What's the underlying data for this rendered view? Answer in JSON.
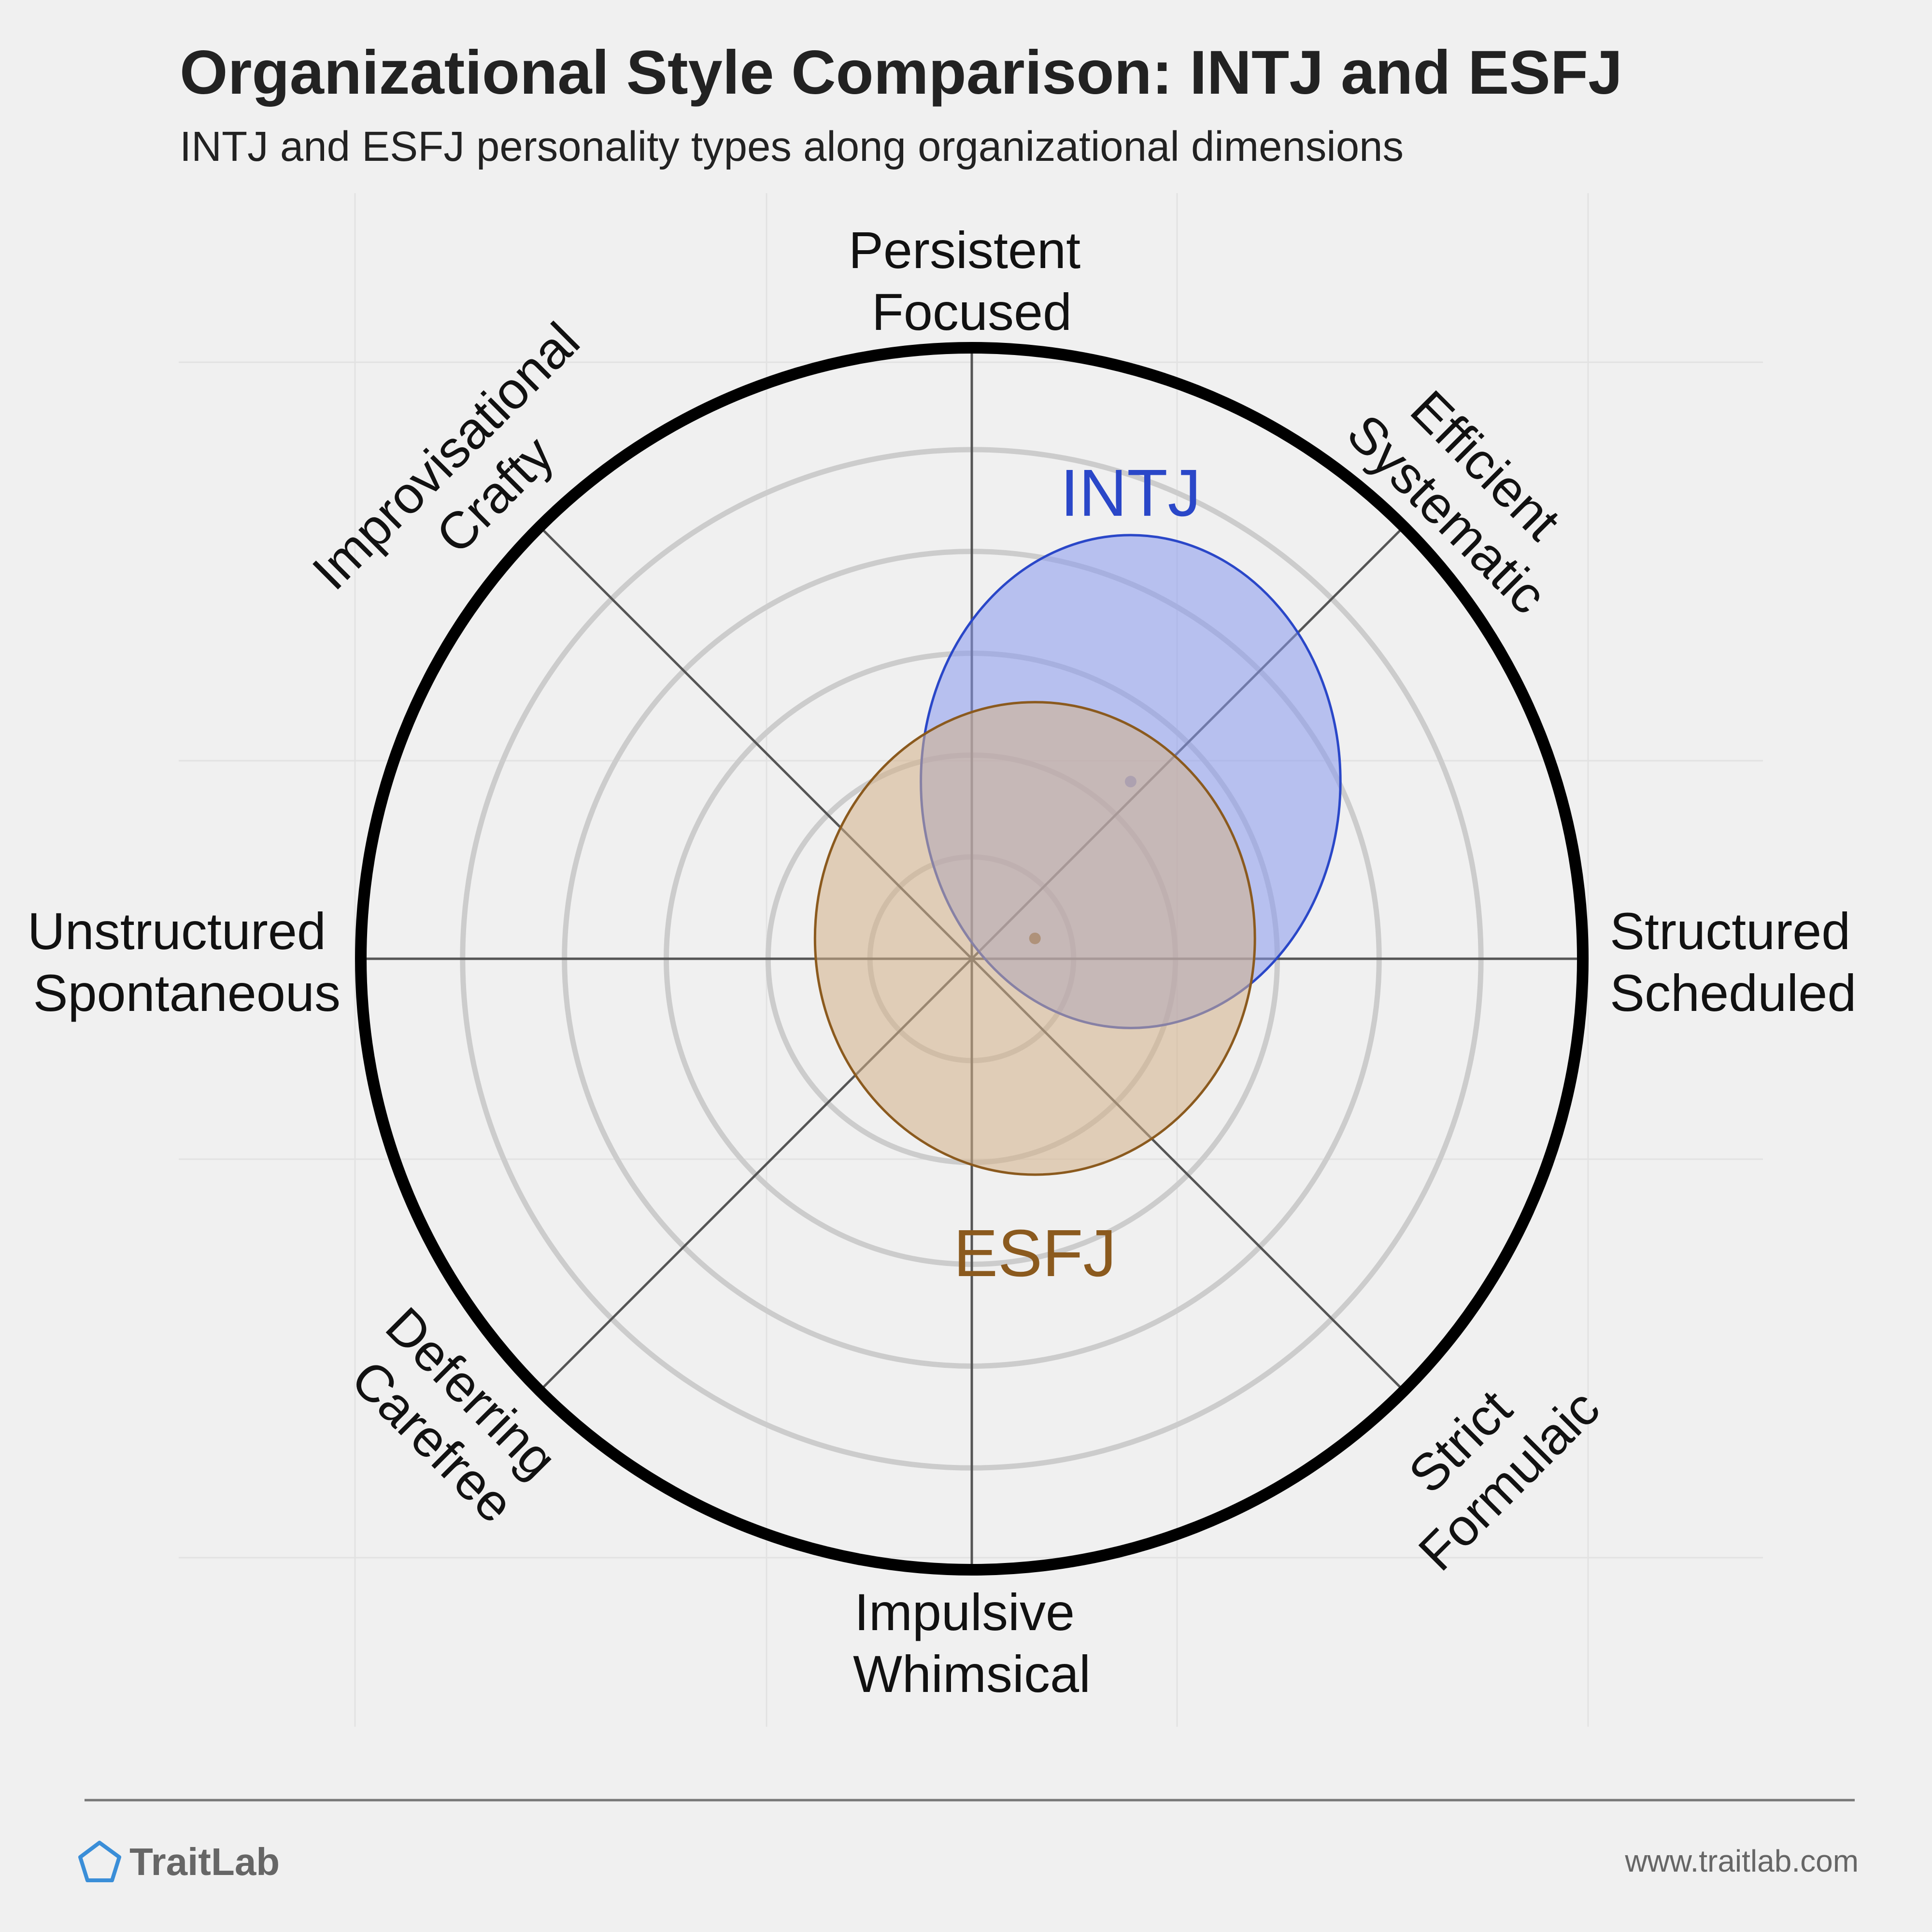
{
  "header": {
    "title": "Organizational Style Comparison: INTJ and ESFJ",
    "subtitle": "INTJ and ESFJ personality types along organizational dimensions"
  },
  "chart_data": {
    "type": "scatter",
    "title": "Organizational Style Comparison: INTJ and ESFJ",
    "subtitle": "INTJ and ESFJ personality types along organizational dimensions",
    "axes": [
      {
        "name": "vertical",
        "positive": [
          "Persistent",
          "Focused"
        ],
        "negative": [
          "Impulsive",
          "Whimsical"
        ]
      },
      {
        "name": "horizontal",
        "positive": [
          "Structured",
          "Scheduled"
        ],
        "negative": [
          "Unstructured",
          "Spontaneous"
        ]
      },
      {
        "name": "diagonal-up",
        "positive": [
          "Efficient",
          "Systematic"
        ],
        "negative": [
          "Deferring",
          "Carefree"
        ]
      },
      {
        "name": "diagonal-down",
        "positive": [
          "Strict",
          "Formulaic"
        ],
        "negative": [
          "Improvisational",
          "Crafty"
        ]
      }
    ],
    "range": [
      -3,
      3
    ],
    "grid_rings": 6,
    "series": [
      {
        "name": "INTJ",
        "color": "#2a47c8",
        "fill": "#8899ee",
        "center": [
          0.78,
          0.87
        ],
        "spread": [
          1.03,
          1.21
        ]
      },
      {
        "name": "ESFJ",
        "color": "#8b5a1e",
        "fill": "#d4b088",
        "center": [
          0.31,
          0.1
        ],
        "spread": [
          1.08,
          1.16
        ]
      }
    ]
  },
  "footer": {
    "brand": "TraitLab",
    "url": "www.traitlab.com",
    "brand_icon": "pentagon-icon"
  }
}
